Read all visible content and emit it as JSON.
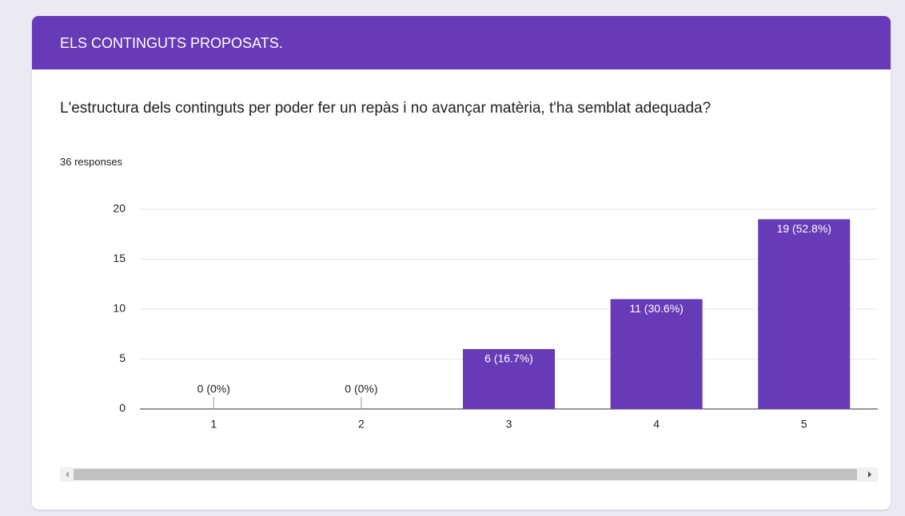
{
  "header": {
    "title": "ELS CONTINGUTS PROPOSATS."
  },
  "question": {
    "text": "L'estructura dels continguts per poder fer un repàs i no avançar matèria, t'ha semblat adequada?",
    "responses": "36 responses"
  },
  "chart_data": {
    "type": "bar",
    "categories": [
      "1",
      "2",
      "3",
      "4",
      "5"
    ],
    "values": [
      0,
      0,
      6,
      11,
      19
    ],
    "value_labels": [
      "0 (0%)",
      "0 (0%)",
      "6 (16.7%)",
      "11 (30.6%)",
      "19 (52.8%)"
    ],
    "color": "#673ab7",
    "ylim": [
      0,
      20
    ],
    "yticks": [
      0,
      5,
      10,
      15,
      20
    ],
    "grid": true
  }
}
